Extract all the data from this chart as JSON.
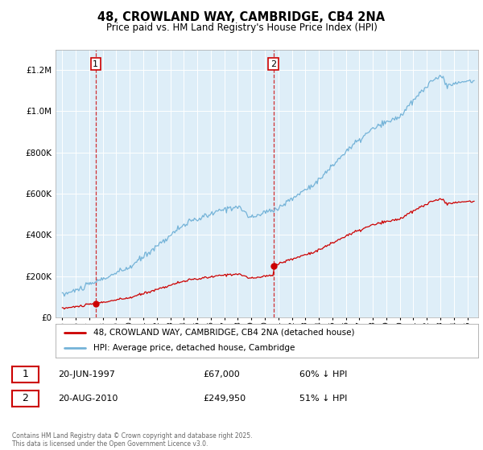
{
  "title": "48, CROWLAND WAY, CAMBRIDGE, CB4 2NA",
  "subtitle": "Price paid vs. HM Land Registry's House Price Index (HPI)",
  "legend_line1": "48, CROWLAND WAY, CAMBRIDGE, CB4 2NA (detached house)",
  "legend_line2": "HPI: Average price, detached house, Cambridge",
  "sale1_date": "20-JUN-1997",
  "sale1_price": "£67,000",
  "sale1_hpi": "60% ↓ HPI",
  "sale2_date": "20-AUG-2010",
  "sale2_price": "£249,950",
  "sale2_hpi": "51% ↓ HPI",
  "copyright": "Contains HM Land Registry data © Crown copyright and database right 2025.\nThis data is licensed under the Open Government Licence v3.0.",
  "ylim": [
    0,
    1300000
  ],
  "yticks": [
    0,
    200000,
    400000,
    600000,
    800000,
    1000000,
    1200000
  ],
  "hpi_color": "#74b3d8",
  "price_color": "#cc0000",
  "bg_color": "#deeef8",
  "sale1_x": 1997.47,
  "sale1_y_price": 67000,
  "sale2_x": 2010.64,
  "sale2_y_price": 249950,
  "xlim": [
    1994.5,
    2025.8
  ]
}
